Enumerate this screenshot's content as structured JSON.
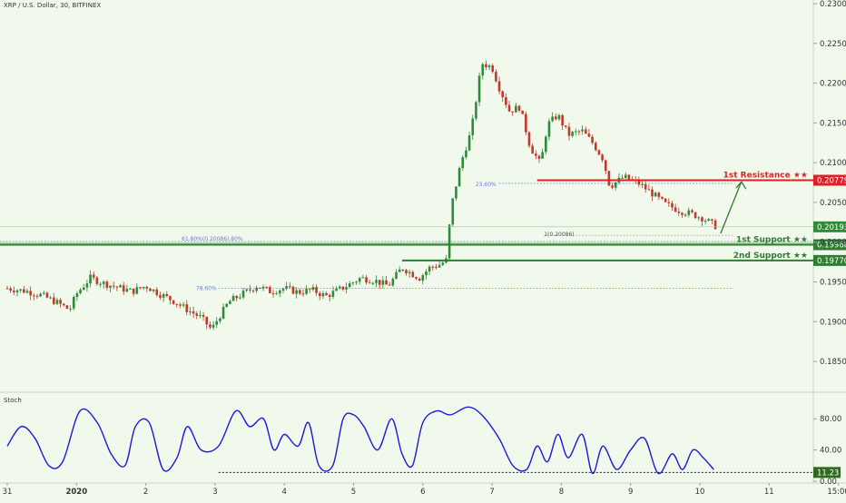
{
  "header": {
    "title": "XRP / U.S. Dollar, 30, BITFINEX"
  },
  "indicator": {
    "name": "Stoch",
    "ref_level_label": "11.23"
  },
  "colors": {
    "background": "#f1f8ec",
    "up_candle": "#2e8b3a",
    "down_candle": "#c0392b",
    "resistance": "#e01f26",
    "support": "#2e7d32",
    "support_band": "#a9d39e",
    "fib_line": "#6b7fc9",
    "stoch_line": "#1c1cd6",
    "arrow": "#2e7d32"
  },
  "chart_data": [
    {
      "type": "candlestick",
      "price_axis": {
        "ylim": [
          0.1825,
          0.23
        ],
        "ticks": [
          "0.23000",
          "0.22500",
          "0.22000",
          "0.21500",
          "0.21000",
          "0.20500",
          "0.20000",
          "0.19500",
          "0.19000",
          "0.18500"
        ]
      },
      "time_axis": {
        "tick_labels": [
          "31",
          "2020",
          "2",
          "3",
          "4",
          "5",
          "6",
          "7",
          "8",
          "9",
          "10",
          "11",
          "15:00"
        ]
      },
      "close_path": [
        [
          0.0,
          0.1942
        ],
        [
          0.3,
          0.1938
        ],
        [
          0.5,
          0.1933
        ],
        [
          0.7,
          0.1925
        ],
        [
          0.9,
          0.1915
        ],
        [
          1.0,
          0.1935
        ],
        [
          1.2,
          0.1955
        ],
        [
          1.4,
          0.1948
        ],
        [
          1.6,
          0.1943
        ],
        [
          1.8,
          0.1938
        ],
        [
          2.0,
          0.1945
        ],
        [
          2.2,
          0.1935
        ],
        [
          2.4,
          0.1926
        ],
        [
          2.6,
          0.1915
        ],
        [
          2.8,
          0.1905
        ],
        [
          2.95,
          0.189
        ],
        [
          3.05,
          0.1905
        ],
        [
          3.2,
          0.1925
        ],
        [
          3.4,
          0.1935
        ],
        [
          3.6,
          0.1945
        ],
        [
          3.8,
          0.1938
        ],
        [
          4.0,
          0.1942
        ],
        [
          4.2,
          0.1937
        ],
        [
          4.4,
          0.194
        ],
        [
          4.6,
          0.1932
        ],
        [
          4.9,
          0.1945
        ],
        [
          5.1,
          0.1955
        ],
        [
          5.3,
          0.1952
        ],
        [
          5.5,
          0.1945
        ],
        [
          5.7,
          0.1968
        ],
        [
          5.85,
          0.196
        ],
        [
          5.95,
          0.1955
        ],
        [
          6.1,
          0.1968
        ],
        [
          6.25,
          0.1972
        ],
        [
          6.35,
          0.1978
        ],
        [
          6.4,
          0.204
        ],
        [
          6.55,
          0.21
        ],
        [
          6.7,
          0.214
        ],
        [
          6.85,
          0.2225
        ],
        [
          7.0,
          0.222
        ],
        [
          7.1,
          0.2195
        ],
        [
          7.25,
          0.2165
        ],
        [
          7.4,
          0.217
        ],
        [
          7.55,
          0.212
        ],
        [
          7.7,
          0.2098
        ],
        [
          7.8,
          0.2148
        ],
        [
          7.95,
          0.216
        ],
        [
          8.1,
          0.2135
        ],
        [
          8.3,
          0.214
        ],
        [
          8.45,
          0.2125
        ],
        [
          8.6,
          0.2105
        ],
        [
          8.7,
          0.207
        ],
        [
          8.9,
          0.2082
        ],
        [
          9.1,
          0.2075
        ],
        [
          9.3,
          0.2062
        ],
        [
          9.5,
          0.2048
        ],
        [
          9.7,
          0.204
        ],
        [
          9.9,
          0.2035
        ],
        [
          10.05,
          0.203
        ],
        [
          10.25,
          0.2019
        ]
      ],
      "levels": [
        {
          "label": "1st Resistance ★★",
          "value": 0.20779,
          "value_label": "0.20779",
          "style": "resistance"
        },
        {
          "label": "1st Support ★★",
          "value": 0.19968,
          "value_label": "0.19968",
          "style": "support"
        },
        {
          "label": "2nd Support ★★",
          "value": 0.1977,
          "value_label": "0.19770",
          "style": "support"
        }
      ],
      "current_price": {
        "value": 0.20193,
        "label": "0.20193"
      },
      "fib_labels": [
        "23.60%",
        "1(0.20086)",
        "61.80%(0.20086).80%",
        "78.60%"
      ],
      "fib_values": [
        0.2074,
        0.20086,
        0.2001,
        0.1942
      ]
    },
    {
      "type": "line",
      "name": "Stoch",
      "ylim": [
        0,
        100
      ],
      "ticks": [
        "80.00",
        "40.00",
        "0.00"
      ],
      "reference_value": 11.23,
      "series": [
        {
          "name": "",
          "points": [
            [
              0.0,
              45
            ],
            [
              0.2,
              70
            ],
            [
              0.4,
              55
            ],
            [
              0.6,
              20
            ],
            [
              0.8,
              25
            ],
            [
              1.05,
              90
            ],
            [
              1.3,
              75
            ],
            [
              1.5,
              35
            ],
            [
              1.7,
              20
            ],
            [
              1.85,
              70
            ],
            [
              2.05,
              75
            ],
            [
              2.25,
              15
            ],
            [
              2.45,
              30
            ],
            [
              2.6,
              70
            ],
            [
              2.8,
              40
            ],
            [
              3.05,
              45
            ],
            [
              3.3,
              90
            ],
            [
              3.5,
              70
            ],
            [
              3.7,
              80
            ],
            [
              3.85,
              40
            ],
            [
              4.0,
              60
            ],
            [
              4.2,
              45
            ],
            [
              4.35,
              75
            ],
            [
              4.5,
              20
            ],
            [
              4.7,
              20
            ],
            [
              4.85,
              80
            ],
            [
              5.0,
              85
            ],
            [
              5.15,
              70
            ],
            [
              5.35,
              40
            ],
            [
              5.55,
              80
            ],
            [
              5.7,
              35
            ],
            [
              5.85,
              20
            ],
            [
              6.0,
              75
            ],
            [
              6.2,
              90
            ],
            [
              6.4,
              85
            ],
            [
              6.65,
              95
            ],
            [
              6.85,
              85
            ],
            [
              7.1,
              55
            ],
            [
              7.3,
              20
            ],
            [
              7.5,
              15
            ],
            [
              7.65,
              45
            ],
            [
              7.8,
              25
            ],
            [
              7.95,
              60
            ],
            [
              8.1,
              30
            ],
            [
              8.3,
              60
            ],
            [
              8.45,
              10
            ],
            [
              8.6,
              45
            ],
            [
              8.8,
              15
            ],
            [
              9.0,
              40
            ],
            [
              9.2,
              55
            ],
            [
              9.4,
              10
            ],
            [
              9.6,
              35
            ],
            [
              9.75,
              15
            ],
            [
              9.9,
              40
            ],
            [
              10.05,
              30
            ],
            [
              10.2,
              15
            ]
          ]
        }
      ]
    }
  ]
}
